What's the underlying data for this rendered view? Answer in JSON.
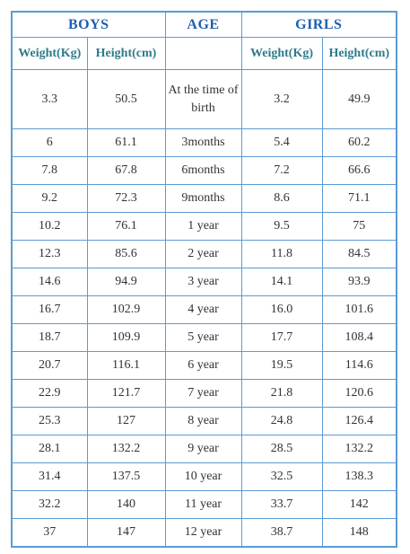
{
  "header": {
    "boys": "BOYS",
    "age": "AGE",
    "girls": "GIRLS"
  },
  "subheader": {
    "boys_weight": "Weight(Kg)",
    "boys_height": "Height(cm)",
    "girls_weight": "Weight(Kg)",
    "girls_height": "Height(cm)"
  },
  "table": {
    "rows": [
      [
        "3.3",
        "50.5",
        "At the time of birth",
        "3.2",
        "49.9"
      ],
      [
        "6",
        "61.1",
        "3months",
        "5.4",
        "60.2"
      ],
      [
        "7.8",
        "67.8",
        "6months",
        "7.2",
        "66.6"
      ],
      [
        "9.2",
        "72.3",
        "9months",
        "8.6",
        "71.1"
      ],
      [
        "10.2",
        "76.1",
        "1 year",
        "9.5",
        "75"
      ],
      [
        "12.3",
        "85.6",
        "2 year",
        "11.8",
        "84.5"
      ],
      [
        "14.6",
        "94.9",
        "3 year",
        "14.1",
        "93.9"
      ],
      [
        "16.7",
        "102.9",
        "4 year",
        "16.0",
        "101.6"
      ],
      [
        "18.7",
        "109.9",
        "5 year",
        "17.7",
        "108.4"
      ],
      [
        "20.7",
        "116.1",
        "6 year",
        "19.5",
        "114.6"
      ],
      [
        "22.9",
        "121.7",
        "7 year",
        "21.8",
        "120.6"
      ],
      [
        "25.3",
        "127",
        "8 year",
        "24.8",
        "126.4"
      ],
      [
        "28.1",
        "132.2",
        "9 year",
        "28.5",
        "132.2"
      ],
      [
        "31.4",
        "137.5",
        "10 year",
        "32.5",
        "138.3"
      ],
      [
        "32.2",
        "140",
        "11 year",
        "33.7",
        "142"
      ],
      [
        "37",
        "147",
        "12 year",
        "38.7",
        "148"
      ]
    ]
  }
}
